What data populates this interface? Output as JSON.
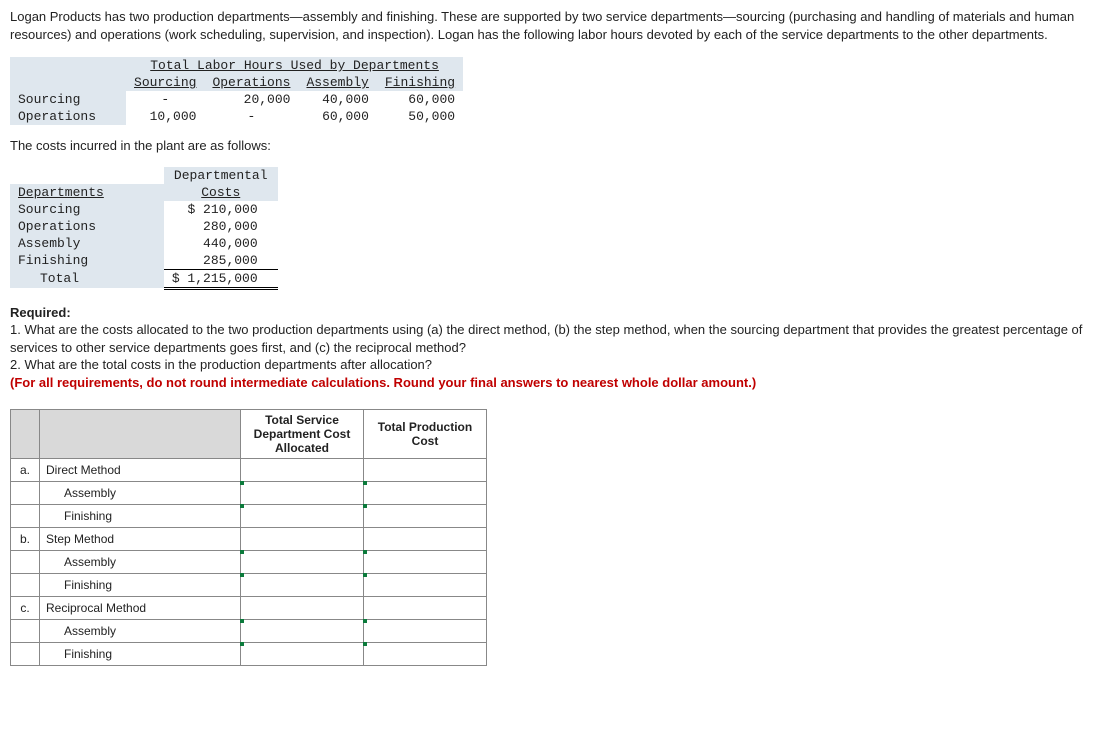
{
  "intro": "Logan Products has two production departments—assembly and finishing. These are supported by two service departments—sourcing (purchasing and handling of materials and human resources) and operations (work scheduling, supervision, and inspection). Logan has the following labor hours devoted by each of the service departments to the other departments.",
  "labor_table": {
    "title": "Total Labor Hours Used by Departments",
    "cols": [
      "Sourcing",
      "Operations",
      "Assembly",
      "Finishing"
    ],
    "rows": [
      {
        "label": "Sourcing",
        "vals": [
          "-",
          "20,000",
          "40,000",
          "60,000"
        ]
      },
      {
        "label": "Operations",
        "vals": [
          "10,000",
          "-",
          "60,000",
          "50,000"
        ]
      }
    ],
    "header_bg": "#dfe7ee"
  },
  "sub1": "The costs incurred in the plant are as follows:",
  "cost_table": {
    "col_labels": [
      "Departments",
      "Departmental Costs"
    ],
    "rows": [
      {
        "label": "Sourcing",
        "val": "$ 210,000"
      },
      {
        "label": "Operations",
        "val": "280,000"
      },
      {
        "label": "Assembly",
        "val": "440,000"
      },
      {
        "label": "Finishing",
        "val": "285,000"
      }
    ],
    "total": {
      "label": "Total",
      "val": "$ 1,215,000"
    }
  },
  "required": {
    "heading": "Required:",
    "q1": "1. What are the costs allocated to the two production departments using (a) the direct method, (b) the step method, when the sourcing department that provides the greatest percentage of services to other service departments goes first, and (c) the reciprocal method?",
    "q2": "2. What are the total costs in the production departments after allocation?",
    "note": "(For all requirements, do not round intermediate calculations. Round your final answers to nearest whole dollar amount.)"
  },
  "answer": {
    "headers": [
      "",
      "",
      "Total Service Department Cost Allocated",
      "Total Production Cost"
    ],
    "rows": [
      {
        "letter": "a.",
        "label": "Direct Method",
        "indent": false,
        "inputs": false
      },
      {
        "letter": "",
        "label": "Assembly",
        "indent": true,
        "inputs": true
      },
      {
        "letter": "",
        "label": "Finishing",
        "indent": true,
        "inputs": true
      },
      {
        "letter": "b.",
        "label": "Step Method",
        "indent": false,
        "inputs": false
      },
      {
        "letter": "",
        "label": "Assembly",
        "indent": true,
        "inputs": true
      },
      {
        "letter": "",
        "label": "Finishing",
        "indent": true,
        "inputs": true
      },
      {
        "letter": "c.",
        "label": "Reciprocal Method",
        "indent": false,
        "inputs": false
      },
      {
        "letter": "",
        "label": "Assembly",
        "indent": true,
        "inputs": true
      },
      {
        "letter": "",
        "label": "Finishing",
        "indent": true,
        "inputs": true
      }
    ]
  },
  "colors": {
    "header_bg": "#dfe7ee",
    "grid_border": "#888888",
    "red_text": "#c00000",
    "marker_green": "#0b7a3b"
  }
}
